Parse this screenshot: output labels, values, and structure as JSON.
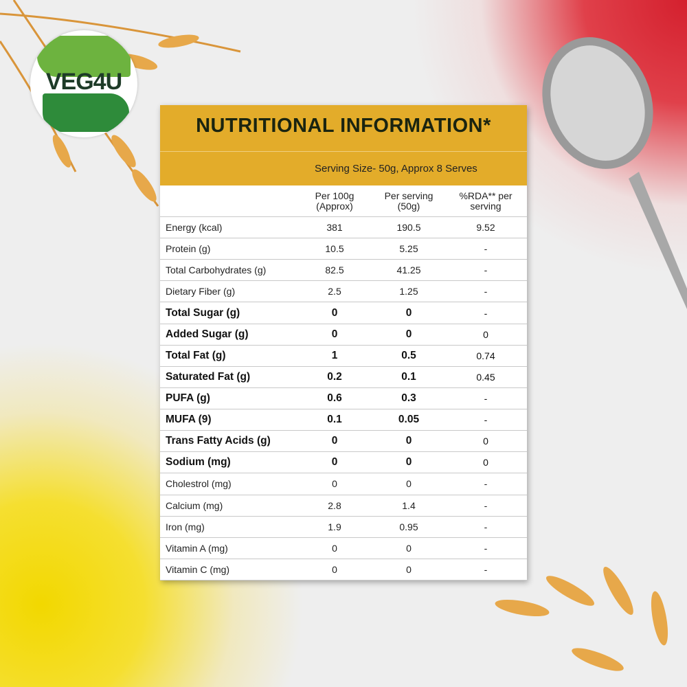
{
  "logo": "VEG4U",
  "title": "NUTRITIONAL INFORMATION*",
  "serving": "Serving Size- 50g, Approx 8 Serves",
  "table": {
    "headers": [
      "Per 100g (Approx)",
      "Per serving (50g)",
      "%RDA** per serving"
    ],
    "rows": [
      {
        "bold": false,
        "cells": [
          "Energy (kcal)",
          "381",
          "190.5",
          "9.52"
        ]
      },
      {
        "bold": false,
        "cells": [
          "Protein (g)",
          "10.5",
          "5.25",
          "-"
        ]
      },
      {
        "bold": false,
        "cells": [
          "Total Carbohydrates (g)",
          "82.5",
          "41.25",
          "-"
        ]
      },
      {
        "bold": false,
        "cells": [
          "Dietary Fiber (g)",
          "2.5",
          "1.25",
          "-"
        ]
      },
      {
        "bold": true,
        "cells": [
          "Total Sugar (g)",
          "0",
          "0",
          "-"
        ]
      },
      {
        "bold": true,
        "cells": [
          "Added Sugar (g)",
          "0",
          "0",
          "0"
        ]
      },
      {
        "bold": true,
        "cells": [
          "Total Fat (g)",
          "1",
          "0.5",
          "0.74"
        ]
      },
      {
        "bold": true,
        "cells": [
          "Saturated Fat (g)",
          "0.2",
          "0.1",
          "0.45"
        ]
      },
      {
        "bold": true,
        "cells": [
          "PUFA (g)",
          "0.6",
          "0.3",
          "-"
        ]
      },
      {
        "bold": true,
        "cells": [
          "MUFA (9)",
          "0.1",
          "0.05",
          "-"
        ]
      },
      {
        "bold": true,
        "cells": [
          "Trans Fatty Acids (g)",
          "0",
          "0",
          "0"
        ]
      },
      {
        "bold": true,
        "cells": [
          "Sodium (mg)",
          "0",
          "0",
          "0"
        ]
      },
      {
        "bold": false,
        "cells": [
          "Cholestrol (mg)",
          "0",
          "0",
          "-"
        ]
      },
      {
        "bold": false,
        "cells": [
          "Calcium (mg)",
          "2.8",
          "1.4",
          "-"
        ]
      },
      {
        "bold": false,
        "cells": [
          "Iron (mg)",
          "1.9",
          "0.95",
          "-"
        ]
      },
      {
        "bold": false,
        "cells": [
          "Vitamin A (mg)",
          "0",
          "0",
          "-"
        ]
      },
      {
        "bold": false,
        "cells": [
          "Vitamin C (mg)",
          "0",
          "0",
          "-"
        ]
      }
    ]
  }
}
